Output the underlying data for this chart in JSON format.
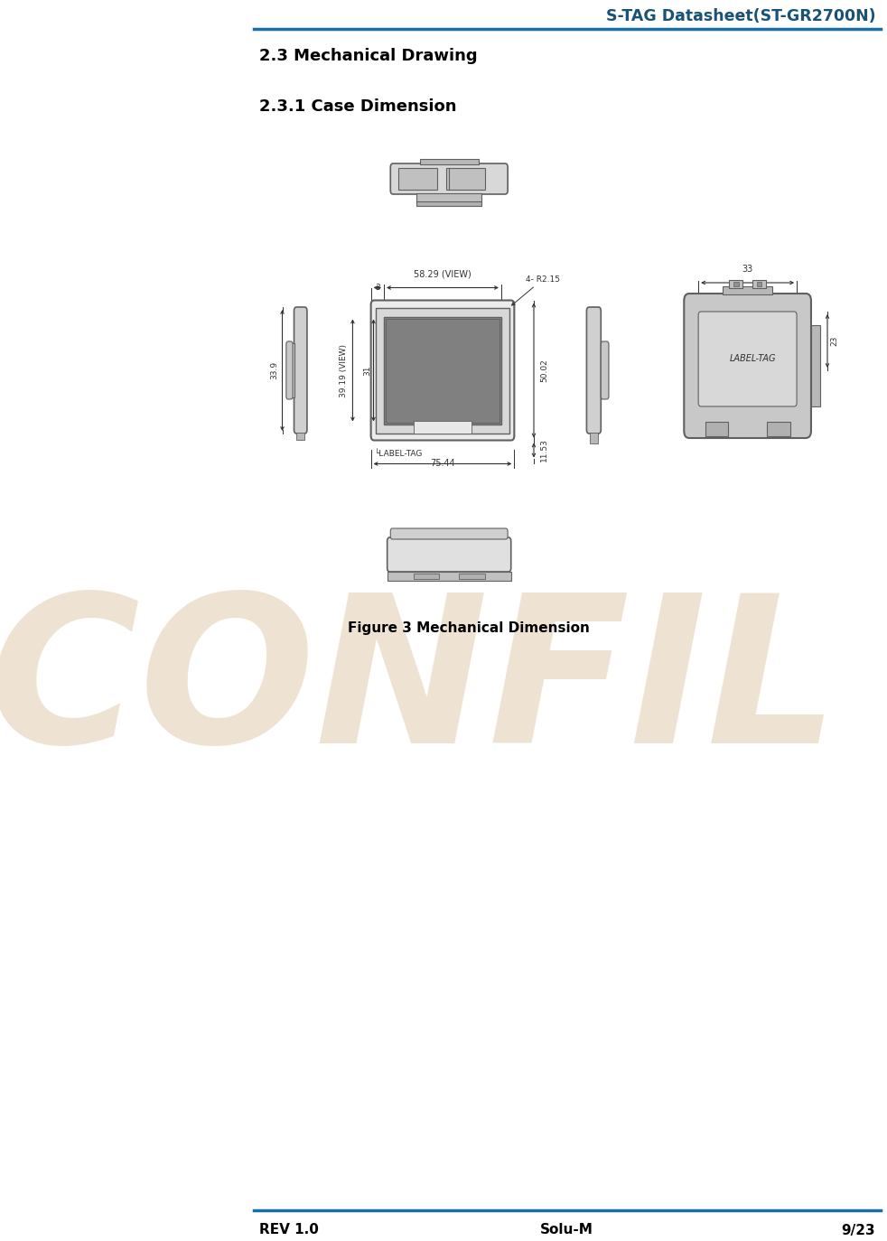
{
  "title": "S-TAG Datasheet(ST-GR2700N)",
  "title_color": "#1a5276",
  "header_line_color": "#1a6fa8",
  "section1": "2.3 Mechanical Drawing",
  "section2": "2.3.1 Case Dimension",
  "figure_caption": "Figure 3 Mechanical Dimension",
  "footer_left": "REV 1.0",
  "footer_center": "Solu-M",
  "footer_right": "9/23",
  "footer_line_color": "#1a6fa8",
  "bg_color": "#ffffff",
  "text_color": "#000000",
  "confidential_text": "CONFIL",
  "confidential_color": "#dfc9a8",
  "dim_color": "#303030",
  "gray_light": "#d0d0d0",
  "gray_med": "#a8a8a8",
  "gray_dark": "#606060",
  "gray_screen": "#909090",
  "white_ish": "#ebebeb"
}
